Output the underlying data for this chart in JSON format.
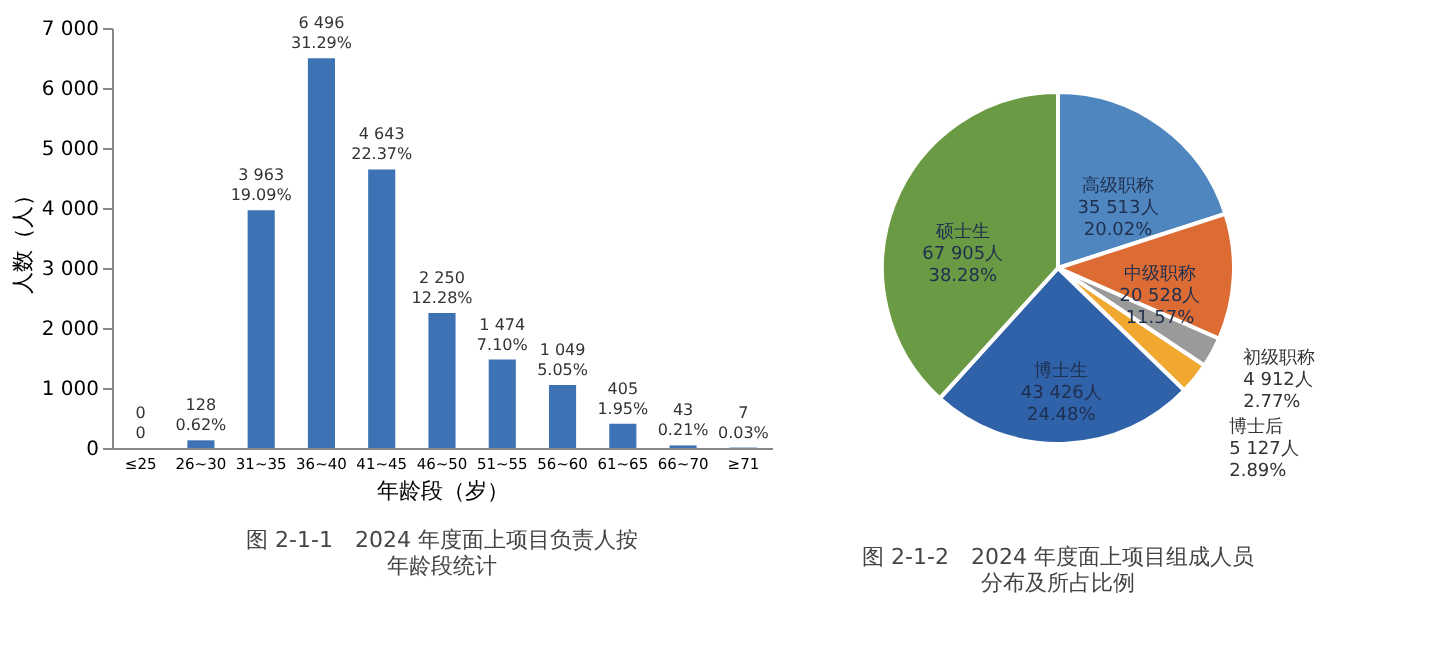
{
  "chart_data": [
    {
      "type": "bar",
      "title": "图 2-1-1　2024 年度面上项目负责人按年龄段统计",
      "xlabel": "年龄段（岁）",
      "ylabel": "人数（人）",
      "categories": [
        "≤25",
        "26~30",
        "31~35",
        "36~40",
        "41~45",
        "46~50",
        "51~55",
        "56~60",
        "61~65",
        "66~70",
        "≥71"
      ],
      "values": [
        0,
        128,
        3963,
        6496,
        4643,
        2250,
        1474,
        1049,
        405,
        43,
        7
      ],
      "value_labels": [
        "0\n0",
        "128\n0.62%",
        "3 963\n19.09%",
        "6 496\n31.29%",
        "4 643\n22.37%",
        "2 250\n12.28%",
        "1 474\n7.10%",
        "1 049\n5.05%",
        "405\n1.95%",
        "43\n0.21%",
        "7\n0.03%"
      ],
      "color": "#3d72b4",
      "ylim": [
        0,
        7000
      ],
      "yticks": [
        {
          "value": 0,
          "label": "0"
        },
        {
          "value": 1000,
          "label": "1 000"
        },
        {
          "value": 2000,
          "label": "2 000"
        },
        {
          "value": 3000,
          "label": "3 000"
        },
        {
          "value": 4000,
          "label": "4 000"
        },
        {
          "value": 5000,
          "label": "5 000"
        },
        {
          "value": 6000,
          "label": "6 000"
        },
        {
          "value": 7000,
          "label": "7 000"
        }
      ],
      "grid": false
    },
    {
      "type": "pie",
      "title": "图 2-1-2　2024 年度面上项目组成人员分布及所占比例",
      "categories": [
        "高级职称",
        "中级职称",
        "初级职称",
        "博士后",
        "博士生",
        "硕士生"
      ],
      "values": [
        35513,
        20528,
        4912,
        5127,
        43426,
        67905
      ],
      "value_labels": [
        "35 513人\n20.02%",
        "20 528人\n11.57%",
        "4 912人\n2.77%",
        "5 127人\n2.89%",
        "43 426人\n24.48%",
        "67 905人\n38.28%"
      ],
      "colors": [
        "#4f86c0",
        "#dd6b34",
        "#9a9a9a",
        "#f0a830",
        "#2f62a8",
        "#6a9a44"
      ],
      "legend": false
    }
  ]
}
